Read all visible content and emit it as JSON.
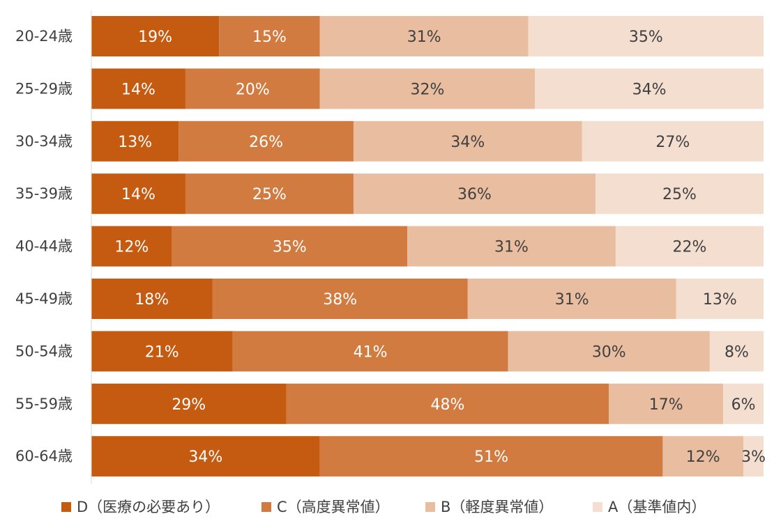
{
  "chart_data": {
    "type": "bar",
    "orientation": "horizontal",
    "stacked": "percent",
    "categories": [
      "20-24歳",
      "25-29歳",
      "30-34歳",
      "35-39歳",
      "40-44歳",
      "45-49歳",
      "50-54歳",
      "55-59歳",
      "60-64歳"
    ],
    "series": [
      {
        "name": "D（医療の必要あり）",
        "color": "#C55A11",
        "label_color": "#FFFFFF",
        "values": [
          19,
          14,
          13,
          14,
          12,
          18,
          21,
          29,
          34
        ]
      },
      {
        "name": "C（高度異常値）",
        "color": "#D27B40",
        "label_color": "#FFFFFF",
        "values": [
          15,
          20,
          26,
          25,
          35,
          38,
          41,
          48,
          51
        ]
      },
      {
        "name": "B（軽度異常値）",
        "color": "#E9BD9F",
        "label_color": "#404040",
        "values": [
          31,
          32,
          34,
          36,
          31,
          31,
          30,
          17,
          12
        ]
      },
      {
        "name": "A（基準値内）",
        "color": "#F4DED0",
        "label_color": "#404040",
        "values": [
          35,
          34,
          27,
          25,
          22,
          13,
          8,
          6,
          3
        ]
      }
    ],
    "data_label_format": "{v}%",
    "xlim": [
      0,
      100
    ],
    "legend": "bottom",
    "grid": false
  }
}
